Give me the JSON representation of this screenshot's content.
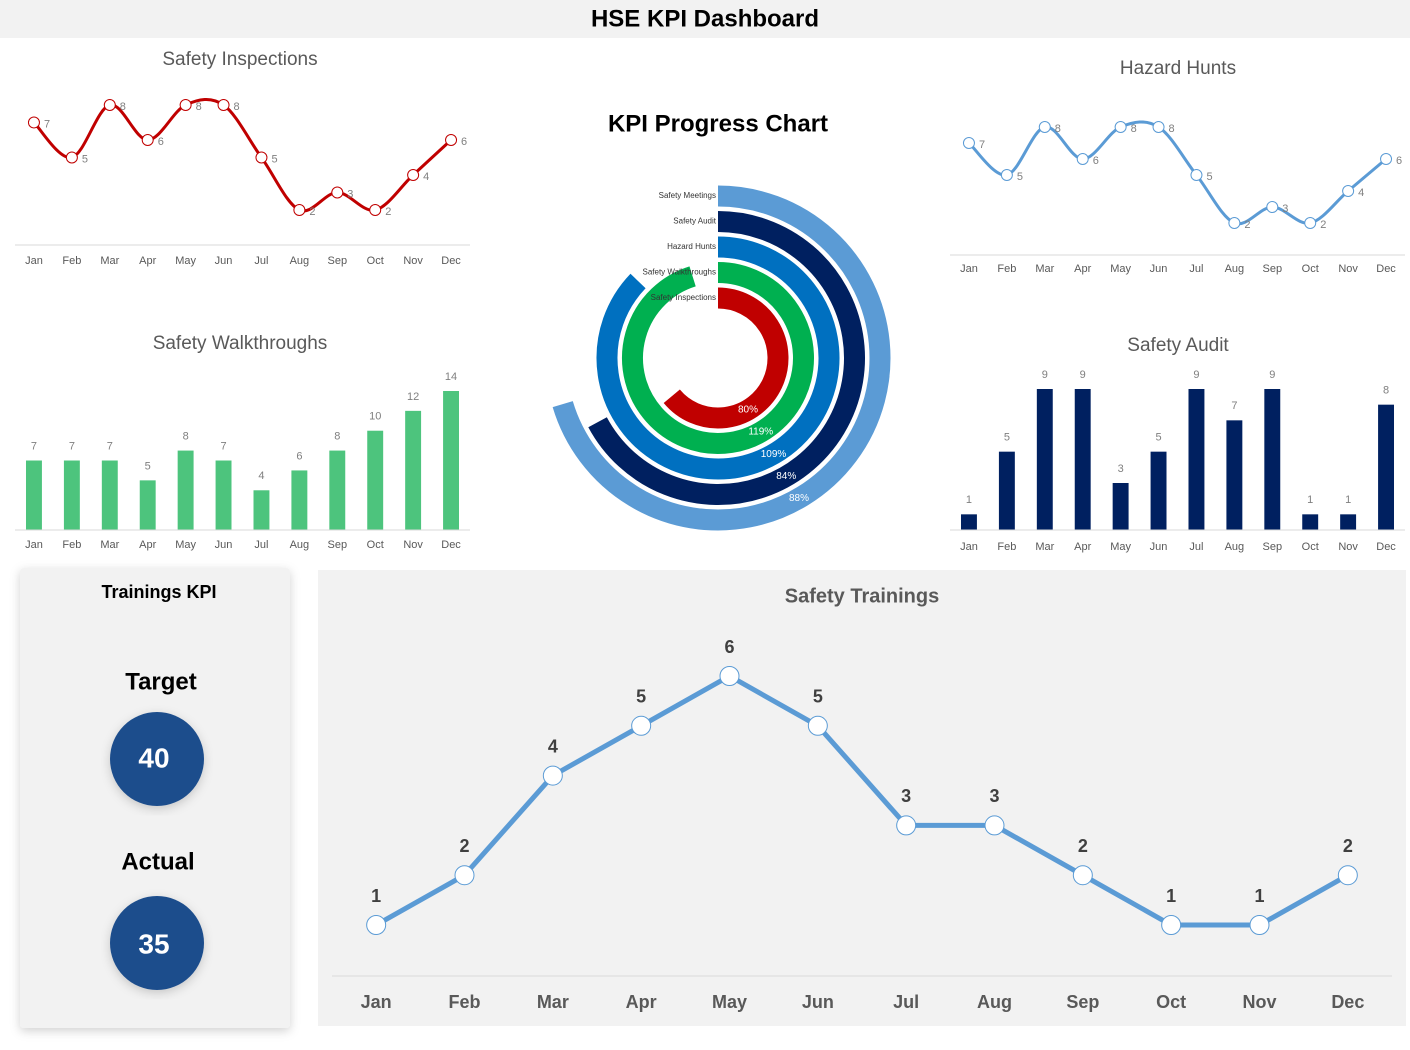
{
  "title": "HSE KPI Dashboard",
  "chart_data": [
    {
      "type": "line",
      "title": "Safety Inspections",
      "color": "#c00000",
      "smooth": true,
      "categories": [
        "Jan",
        "Feb",
        "Mar",
        "Apr",
        "May",
        "Jun",
        "Jul",
        "Aug",
        "Sep",
        "Oct",
        "Nov",
        "Dec"
      ],
      "values": [
        7,
        5,
        8,
        6,
        8,
        8,
        5,
        2,
        3,
        2,
        4,
        6
      ]
    },
    {
      "type": "bar",
      "title": "Safety Walkthroughs",
      "color": "#4dc47d",
      "categories": [
        "Jan",
        "Feb",
        "Mar",
        "Apr",
        "May",
        "Jun",
        "Jul",
        "Aug",
        "Sep",
        "Oct",
        "Nov",
        "Dec"
      ],
      "values": [
        7,
        7,
        7,
        5,
        8,
        7,
        4,
        6,
        8,
        10,
        12,
        14
      ]
    },
    {
      "type": "radial",
      "title": "KPI Progress Chart",
      "categories": [
        "Safety Meetings",
        "Safety Audit",
        "Hazard Hunts",
        "Safety Walkthroughs",
        "Safety Inspections"
      ],
      "values": [
        88,
        84,
        109,
        119,
        80
      ],
      "value_labels": [
        "88%",
        "84%",
        "109%",
        "119%",
        "80%"
      ],
      "colors": [
        "#5b9bd5",
        "#002060",
        "#0070c0",
        "#00b050",
        "#c00000"
      ]
    },
    {
      "type": "line",
      "title": "Hazard Hunts",
      "color": "#5b9bd5",
      "smooth": true,
      "categories": [
        "Jan",
        "Feb",
        "Mar",
        "Apr",
        "May",
        "Jun",
        "Jul",
        "Aug",
        "Sep",
        "Oct",
        "Nov",
        "Dec"
      ],
      "values": [
        7,
        5,
        8,
        6,
        8,
        8,
        5,
        2,
        3,
        2,
        4,
        6
      ]
    },
    {
      "type": "bar",
      "title": "Safety Audit",
      "color": "#002060",
      "categories": [
        "Jan",
        "Feb",
        "Mar",
        "Apr",
        "May",
        "Jun",
        "Jul",
        "Aug",
        "Sep",
        "Oct",
        "Nov",
        "Dec"
      ],
      "values": [
        1,
        5,
        9,
        9,
        3,
        5,
        9,
        7,
        9,
        1,
        1,
        8
      ]
    },
    {
      "type": "line",
      "title": "Safety Trainings",
      "color": "#5b9bd5",
      "smooth": false,
      "categories": [
        "Jan",
        "Feb",
        "Mar",
        "Apr",
        "May",
        "Jun",
        "Jul",
        "Aug",
        "Sep",
        "Oct",
        "Nov",
        "Dec"
      ],
      "values": [
        1,
        2,
        4,
        5,
        6,
        5,
        3,
        3,
        2,
        1,
        1,
        2
      ]
    }
  ],
  "kpi": {
    "title": "Trainings  KPI",
    "target_label": "Target",
    "target": 40,
    "actual_label": "Actual",
    "actual": 35
  }
}
